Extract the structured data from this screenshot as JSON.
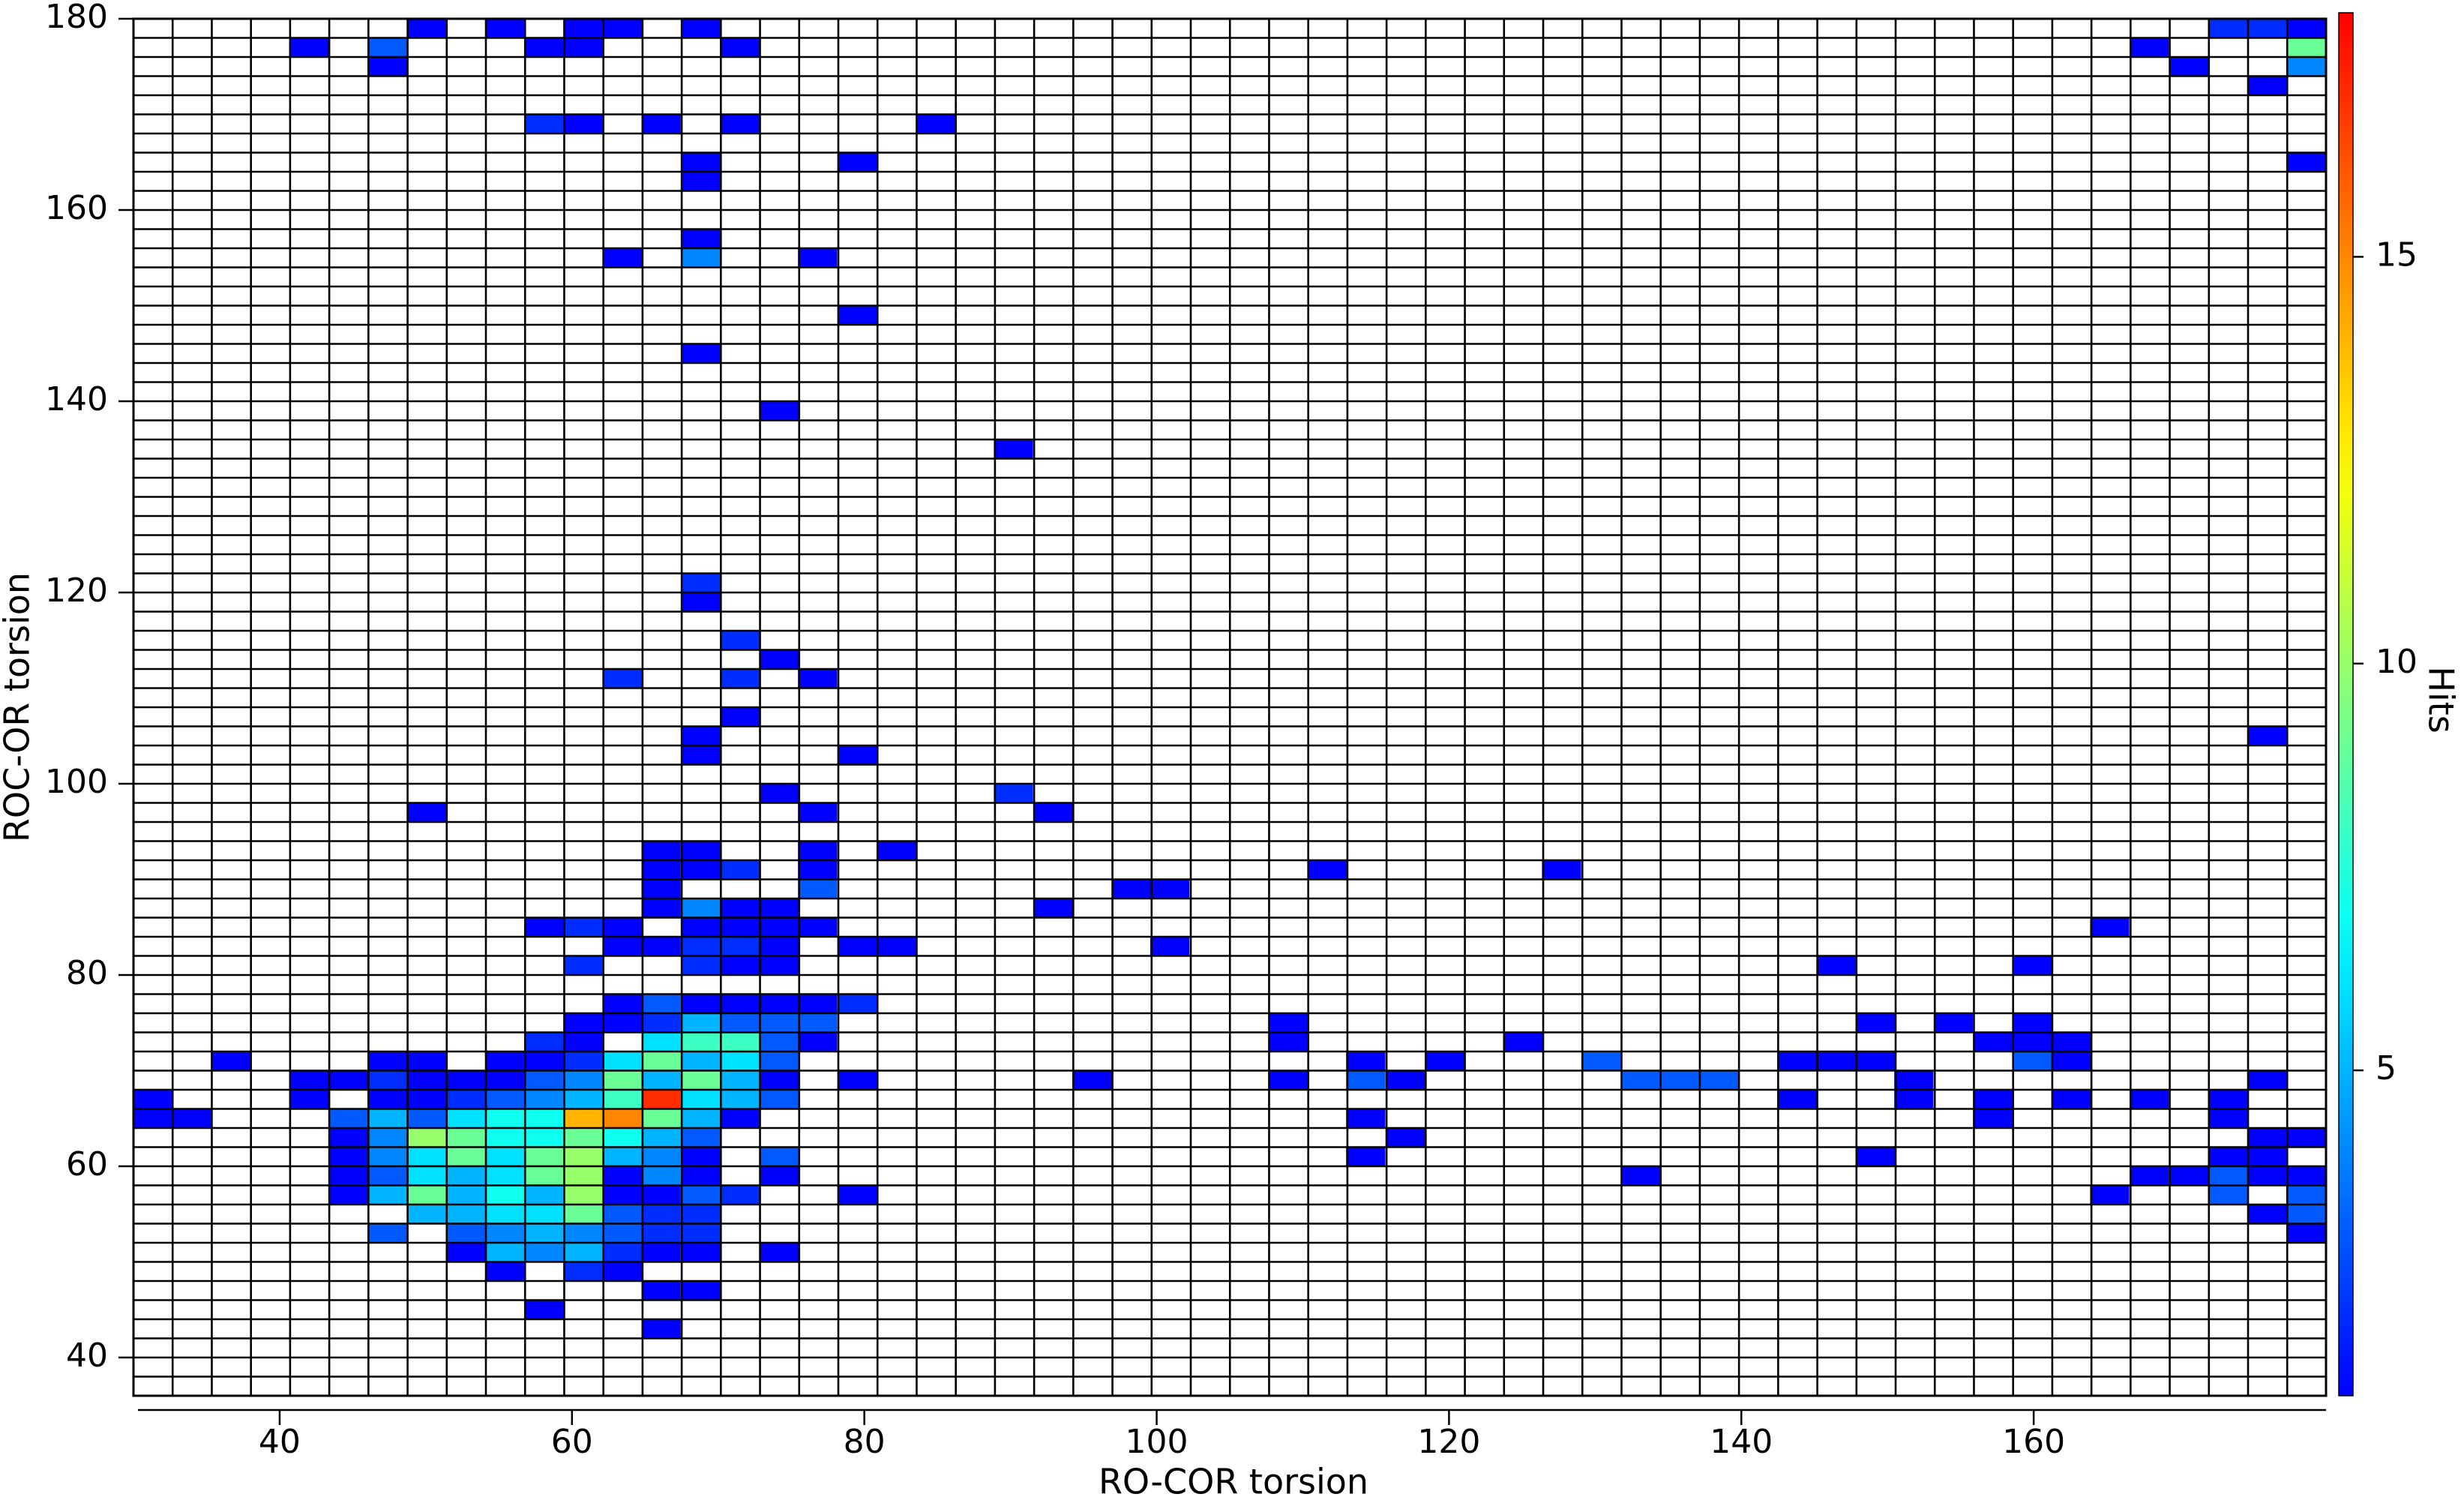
{
  "chart_data": {
    "type": "heatmap",
    "x_label": "RO-COR torsion",
    "y_label": "ROC-OR torsion",
    "xlim": [
      30,
      180
    ],
    "ylim": [
      36,
      180
    ],
    "xticks": [
      40,
      60,
      80,
      100,
      120,
      140,
      160
    ],
    "yticks": [
      40,
      60,
      80,
      100,
      120,
      140,
      160,
      180
    ],
    "bin_size": [
      2.679,
      2
    ],
    "colormap": "jet",
    "colorbar": {
      "label": "Hits",
      "lim": [
        1,
        18
      ],
      "ticks": [
        5,
        10,
        15
      ]
    },
    "rows": [
      {
        "y": 179,
        "x": [
          50.1,
          55.4,
          60.8,
          63.5,
          68.8,
          173.3,
          176.0,
          178.7
        ],
        "values": [
          1,
          1,
          1,
          1,
          1,
          2,
          2,
          1
        ]
      },
      {
        "y": 177,
        "x": [
          42.1,
          47.4,
          58.1,
          60.8,
          71.5,
          167.9,
          178.7
        ],
        "values": [
          1,
          3,
          1,
          1,
          1,
          1,
          9
        ]
      },
      {
        "y": 175,
        "x": [
          47.4,
          170.6,
          178.7
        ],
        "values": [
          1,
          1,
          4
        ]
      },
      {
        "y": 173,
        "x": [
          176.0
        ],
        "values": [
          1
        ]
      },
      {
        "y": 169,
        "x": [
          58.1,
          60.8,
          66.1,
          71.5,
          84.9
        ],
        "values": [
          2,
          1,
          1,
          1,
          1
        ]
      },
      {
        "y": 165,
        "x": [
          68.8,
          79.5,
          178.7
        ],
        "values": [
          1,
          1,
          1
        ]
      },
      {
        "y": 163,
        "x": [
          68.8
        ],
        "values": [
          1
        ]
      },
      {
        "y": 157,
        "x": [
          68.8
        ],
        "values": [
          1
        ]
      },
      {
        "y": 155,
        "x": [
          63.5,
          68.8,
          76.8
        ],
        "values": [
          1,
          4,
          1
        ]
      },
      {
        "y": 149,
        "x": [
          79.5
        ],
        "values": [
          1
        ]
      },
      {
        "y": 145,
        "x": [
          68.8
        ],
        "values": [
          1
        ]
      },
      {
        "y": 139,
        "x": [
          74.2
        ],
        "values": [
          1
        ]
      },
      {
        "y": 135,
        "x": [
          90.2
        ],
        "values": [
          1
        ]
      },
      {
        "y": 121,
        "x": [
          68.8
        ],
        "values": [
          2
        ]
      },
      {
        "y": 119,
        "x": [
          68.8
        ],
        "values": [
          1
        ]
      },
      {
        "y": 115,
        "x": [
          71.5
        ],
        "values": [
          2
        ]
      },
      {
        "y": 113,
        "x": [
          74.2
        ],
        "values": [
          1
        ]
      },
      {
        "y": 111,
        "x": [
          63.5,
          71.5,
          76.8
        ],
        "values": [
          2,
          2,
          1
        ]
      },
      {
        "y": 107,
        "x": [
          71.5
        ],
        "values": [
          1
        ]
      },
      {
        "y": 105,
        "x": [
          68.8,
          176.0
        ],
        "values": [
          1,
          1
        ]
      },
      {
        "y": 103,
        "x": [
          68.8,
          79.5
        ],
        "values": [
          1,
          1
        ]
      },
      {
        "y": 99,
        "x": [
          74.2,
          90.2
        ],
        "values": [
          1,
          2
        ]
      },
      {
        "y": 97,
        "x": [
          50.1,
          76.8,
          92.9
        ],
        "values": [
          1,
          1,
          1
        ]
      },
      {
        "y": 93,
        "x": [
          66.1,
          68.8,
          76.8,
          82.2
        ],
        "values": [
          1,
          1,
          1,
          1
        ]
      },
      {
        "y": 91,
        "x": [
          66.1,
          68.8,
          71.5,
          76.8,
          111.7,
          127.7
        ],
        "values": [
          1,
          1,
          2,
          1,
          1,
          1
        ]
      },
      {
        "y": 89,
        "x": [
          66.1,
          76.8,
          98.3,
          100.9
        ],
        "values": [
          1,
          3,
          1,
          1
        ]
      },
      {
        "y": 87,
        "x": [
          66.1,
          68.8,
          71.5,
          74.2,
          92.9
        ],
        "values": [
          1,
          4,
          1,
          1,
          1
        ]
      },
      {
        "y": 85,
        "x": [
          58.1,
          60.8,
          63.5,
          68.8,
          71.5,
          74.2,
          76.8,
          165.2
        ],
        "values": [
          1,
          2,
          1,
          1,
          1,
          1,
          1,
          1
        ]
      },
      {
        "y": 83,
        "x": [
          63.5,
          66.1,
          68.8,
          71.5,
          74.2,
          79.5,
          82.2,
          100.9
        ],
        "values": [
          1,
          1,
          2,
          2,
          1,
          1,
          1,
          1
        ]
      },
      {
        "y": 81,
        "x": [
          60.8,
          68.8,
          71.5,
          74.2,
          146.5,
          159.9
        ],
        "values": [
          2,
          2,
          1,
          1,
          1,
          1
        ]
      },
      {
        "y": 77,
        "x": [
          63.5,
          66.1,
          68.8,
          71.5,
          74.2,
          76.8,
          79.5
        ],
        "values": [
          1,
          3,
          1,
          1,
          1,
          1,
          2
        ]
      },
      {
        "y": 75,
        "x": [
          60.8,
          63.5,
          66.1,
          68.8,
          71.5,
          74.2,
          76.8,
          109.0,
          149.2,
          154.5,
          159.9
        ],
        "values": [
          1,
          1,
          2,
          5,
          3,
          3,
          3,
          1,
          1,
          1,
          1
        ]
      },
      {
        "y": 73,
        "x": [
          58.1,
          60.8,
          66.1,
          68.8,
          71.5,
          74.2,
          76.8,
          109.0,
          125.1,
          157.2,
          159.9,
          162.6
        ],
        "values": [
          2,
          1,
          6,
          8,
          8,
          3,
          1,
          1,
          1,
          1,
          1,
          1
        ]
      },
      {
        "y": 71,
        "x": [
          36.7,
          47.4,
          50.1,
          55.4,
          58.1,
          60.8,
          63.5,
          66.1,
          68.8,
          71.5,
          74.2,
          114.3,
          119.7,
          130.4,
          143.8,
          146.5,
          149.2,
          159.9,
          162.6
        ],
        "values": [
          1,
          1,
          1,
          1,
          1,
          2,
          6,
          9,
          5,
          6,
          3,
          1,
          1,
          3,
          1,
          1,
          1,
          3,
          1
        ]
      },
      {
        "y": 69,
        "x": [
          42.1,
          44.7,
          47.4,
          50.1,
          52.8,
          55.4,
          58.1,
          60.8,
          63.5,
          66.1,
          68.8,
          71.5,
          74.2,
          79.5,
          95.6,
          109.0,
          114.3,
          117.0,
          133.1,
          135.8,
          138.5,
          151.8,
          176.0
        ],
        "values": [
          1,
          1,
          2,
          1,
          1,
          1,
          3,
          4,
          9,
          5,
          9,
          5,
          1,
          1,
          1,
          1,
          3,
          1,
          3,
          3,
          3,
          1,
          1
        ]
      },
      {
        "y": 67,
        "x": [
          31.3,
          42.1,
          47.4,
          50.1,
          52.8,
          55.4,
          58.1,
          60.8,
          63.5,
          66.1,
          68.8,
          71.5,
          74.2,
          143.8,
          151.8,
          157.2,
          162.6,
          167.9,
          173.3
        ],
        "values": [
          1,
          1,
          1,
          1,
          2,
          3,
          4,
          5,
          8,
          17,
          6,
          5,
          3,
          1,
          1,
          1,
          1,
          1,
          1
        ]
      },
      {
        "y": 65,
        "x": [
          31.3,
          34.0,
          44.7,
          47.4,
          50.1,
          52.8,
          55.4,
          58.1,
          60.8,
          63.5,
          66.1,
          68.8,
          71.5,
          114.3,
          157.2,
          173.3
        ],
        "values": [
          1,
          1,
          3,
          5,
          3,
          6,
          7,
          7,
          14,
          15,
          9,
          5,
          1,
          1,
          1,
          1
        ]
      },
      {
        "y": 63,
        "x": [
          44.7,
          47.4,
          50.1,
          52.8,
          55.4,
          58.1,
          60.8,
          63.5,
          66.1,
          68.8,
          117.0,
          176.0,
          178.7
        ],
        "values": [
          1,
          4,
          10,
          9,
          7,
          7,
          9,
          7,
          5,
          3,
          1,
          1,
          1
        ]
      },
      {
        "y": 61,
        "x": [
          44.7,
          47.4,
          50.1,
          52.8,
          55.4,
          58.1,
          60.8,
          63.5,
          66.1,
          68.8,
          74.2,
          114.3,
          149.2,
          173.3,
          176.0
        ],
        "values": [
          1,
          4,
          6,
          9,
          6,
          9,
          10,
          5,
          4,
          1,
          3,
          1,
          1,
          1,
          1
        ]
      },
      {
        "y": 59,
        "x": [
          44.7,
          47.4,
          50.1,
          52.8,
          55.4,
          58.1,
          60.8,
          63.5,
          66.1,
          68.8,
          74.2,
          133.1,
          167.9,
          170.6,
          173.3,
          176.0,
          178.7
        ],
        "values": [
          1,
          3,
          6,
          5,
          6,
          9,
          10,
          1,
          4,
          1,
          1,
          1,
          1,
          1,
          3,
          1,
          1
        ]
      },
      {
        "y": 57,
        "x": [
          44.7,
          47.4,
          50.1,
          52.8,
          55.4,
          58.1,
          60.8,
          63.5,
          66.1,
          68.8,
          71.5,
          79.5,
          165.2,
          173.3,
          178.7
        ],
        "values": [
          1,
          5,
          9,
          5,
          7,
          5,
          10,
          1,
          1,
          3,
          2,
          1,
          1,
          3,
          3
        ]
      },
      {
        "y": 55,
        "x": [
          50.1,
          52.8,
          55.4,
          58.1,
          60.8,
          63.5,
          66.1,
          68.8,
          176.0,
          178.7
        ],
        "values": [
          5,
          5,
          6,
          6,
          9,
          3,
          2,
          2,
          1,
          3
        ]
      },
      {
        "y": 53,
        "x": [
          47.4,
          52.8,
          55.4,
          58.1,
          60.8,
          63.5,
          66.1,
          68.8,
          178.7
        ],
        "values": [
          3,
          3,
          4,
          5,
          4,
          3,
          2,
          2,
          1
        ]
      },
      {
        "y": 51,
        "x": [
          52.8,
          55.4,
          58.1,
          60.8,
          63.5,
          66.1,
          68.8,
          74.2
        ],
        "values": [
          1,
          5,
          4,
          5,
          2,
          1,
          1,
          1
        ]
      },
      {
        "y": 49,
        "x": [
          55.4,
          60.8,
          63.5
        ],
        "values": [
          1,
          2,
          1
        ]
      },
      {
        "y": 47,
        "x": [
          66.1,
          68.8
        ],
        "values": [
          1,
          1
        ]
      },
      {
        "y": 45,
        "x": [
          58.1
        ],
        "values": [
          1
        ]
      },
      {
        "y": 43,
        "x": [
          66.1
        ],
        "values": [
          1
        ]
      }
    ]
  }
}
